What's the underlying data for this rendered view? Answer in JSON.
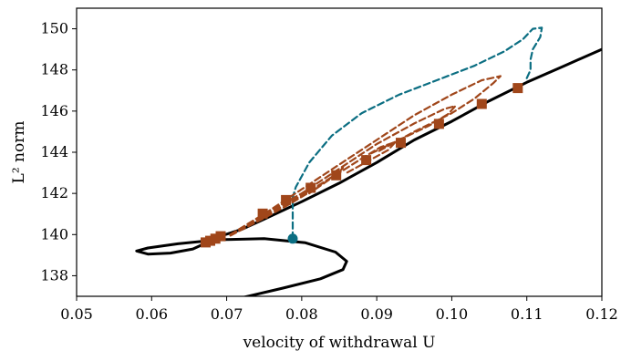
{
  "chart_data": {
    "type": "line",
    "xlabel": "velocity of withdrawal U",
    "ylabel": "L² norm",
    "xlim": [
      0.05,
      0.12
    ],
    "ylim": [
      137.0,
      151.0
    ],
    "xticks": [
      "0.05",
      "0.06",
      "0.07",
      "0.08",
      "0.09",
      "0.10",
      "0.11",
      "0.12"
    ],
    "yticks": [
      "138",
      "140",
      "142",
      "144",
      "146",
      "148",
      "150"
    ],
    "xtick_values": [
      0.05,
      0.06,
      0.07,
      0.08,
      0.09,
      0.1,
      0.11,
      0.12
    ],
    "ytick_values": [
      138,
      140,
      142,
      144,
      146,
      148,
      150
    ],
    "grid": false,
    "colors": {
      "main": "#000000",
      "teal": "#0b6e82",
      "brown": "#a0461a"
    },
    "series": [
      {
        "style": "solid",
        "color": "#000000",
        "points": [
          [
            0.0705,
            136.8
          ],
          [
            0.0775,
            137.4
          ],
          [
            0.0825,
            137.85
          ],
          [
            0.0855,
            138.3
          ],
          [
            0.086,
            138.7
          ],
          [
            0.0845,
            139.15
          ],
          [
            0.0805,
            139.6
          ],
          [
            0.075,
            139.8
          ],
          [
            0.069,
            139.75
          ],
          [
            0.0635,
            139.55
          ],
          [
            0.0595,
            139.35
          ],
          [
            0.058,
            139.2
          ],
          [
            0.0595,
            139.05
          ],
          [
            0.0625,
            139.1
          ],
          [
            0.0655,
            139.3
          ],
          [
            0.0672,
            139.58
          ],
          [
            0.069,
            139.9
          ],
          [
            0.072,
            140.25
          ],
          [
            0.075,
            140.75
          ],
          [
            0.08,
            141.6
          ],
          [
            0.085,
            142.5
          ],
          [
            0.09,
            143.5
          ],
          [
            0.095,
            144.6
          ],
          [
            0.1,
            145.5
          ],
          [
            0.105,
            146.5
          ],
          [
            0.11,
            147.4
          ],
          [
            0.115,
            148.2
          ],
          [
            0.12,
            149.0
          ]
        ]
      },
      {
        "style": "dashed",
        "color": "#0b6e82",
        "points": [
          [
            0.0788,
            139.8
          ],
          [
            0.0788,
            140.2
          ],
          [
            0.0788,
            140.8
          ],
          [
            0.0788,
            141.4
          ],
          [
            0.0788,
            141.8
          ],
          [
            0.0792,
            142.3
          ],
          [
            0.081,
            143.5
          ],
          [
            0.084,
            144.8
          ],
          [
            0.088,
            145.9
          ],
          [
            0.093,
            146.8
          ],
          [
            0.098,
            147.5
          ],
          [
            0.103,
            148.2
          ],
          [
            0.107,
            148.9
          ],
          [
            0.1095,
            149.5
          ],
          [
            0.1108,
            150.0
          ],
          [
            0.112,
            150.05
          ],
          [
            0.1118,
            149.6
          ],
          [
            0.1108,
            149.0
          ],
          [
            0.1105,
            148.5
          ],
          [
            0.1105,
            148.0
          ],
          [
            0.11,
            147.6
          ]
        ]
      },
      {
        "style": "dashed",
        "color": "#a0461a",
        "points": [
          [
            0.0705,
            140.0
          ],
          [
            0.075,
            141.0
          ],
          [
            0.08,
            142.2
          ],
          [
            0.085,
            143.4
          ],
          [
            0.09,
            144.6
          ],
          [
            0.095,
            145.8
          ],
          [
            0.1,
            146.8
          ],
          [
            0.104,
            147.5
          ],
          [
            0.1065,
            147.7
          ],
          [
            0.1055,
            147.35
          ],
          [
            0.103,
            146.6
          ],
          [
            0.1,
            145.9
          ],
          [
            0.095,
            145.0
          ],
          [
            0.09,
            144.0
          ]
        ]
      },
      {
        "style": "dashed",
        "color": "#a0461a",
        "points": [
          [
            0.0705,
            140.0
          ],
          [
            0.075,
            141.0
          ],
          [
            0.08,
            142.0
          ],
          [
            0.085,
            143.2
          ],
          [
            0.09,
            144.4
          ],
          [
            0.095,
            145.4
          ],
          [
            0.099,
            146.1
          ],
          [
            0.1005,
            146.25
          ],
          [
            0.0995,
            145.85
          ],
          [
            0.097,
            145.3
          ],
          [
            0.093,
            144.6
          ],
          [
            0.089,
            143.9
          ]
        ]
      },
      {
        "style": "dashed",
        "color": "#a0461a",
        "points": [
          [
            0.0705,
            140.0
          ],
          [
            0.075,
            140.9
          ],
          [
            0.08,
            141.9
          ],
          [
            0.085,
            143.0
          ],
          [
            0.088,
            143.7
          ],
          [
            0.0905,
            144.25
          ],
          [
            0.0925,
            144.5
          ],
          [
            0.0915,
            144.1
          ],
          [
            0.089,
            143.6
          ],
          [
            0.086,
            143.0
          ]
        ]
      },
      {
        "style": "dashed",
        "color": "#a0461a",
        "points": [
          [
            0.0705,
            139.95
          ],
          [
            0.075,
            140.8
          ],
          [
            0.078,
            141.4
          ],
          [
            0.081,
            142.05
          ],
          [
            0.084,
            142.8
          ],
          [
            0.0855,
            143.25
          ],
          [
            0.0848,
            142.95
          ],
          [
            0.083,
            142.5
          ],
          [
            0.081,
            142.0
          ]
        ]
      }
    ],
    "markers_square": {
      "color": "#a0461a",
      "points": [
        [
          0.0672,
          139.62
        ],
        [
          0.0678,
          139.7
        ],
        [
          0.0685,
          139.8
        ],
        [
          0.0692,
          139.92
        ],
        [
          0.0748,
          141.02
        ],
        [
          0.0779,
          141.68
        ],
        [
          0.0812,
          142.27
        ],
        [
          0.0846,
          142.88
        ],
        [
          0.0886,
          143.62
        ],
        [
          0.0932,
          144.46
        ],
        [
          0.0983,
          145.38
        ],
        [
          0.104,
          146.35
        ],
        [
          0.1088,
          147.12
        ]
      ]
    },
    "marker_circle": {
      "color": "#0b6e82",
      "point": [
        0.0788,
        139.8
      ]
    }
  }
}
